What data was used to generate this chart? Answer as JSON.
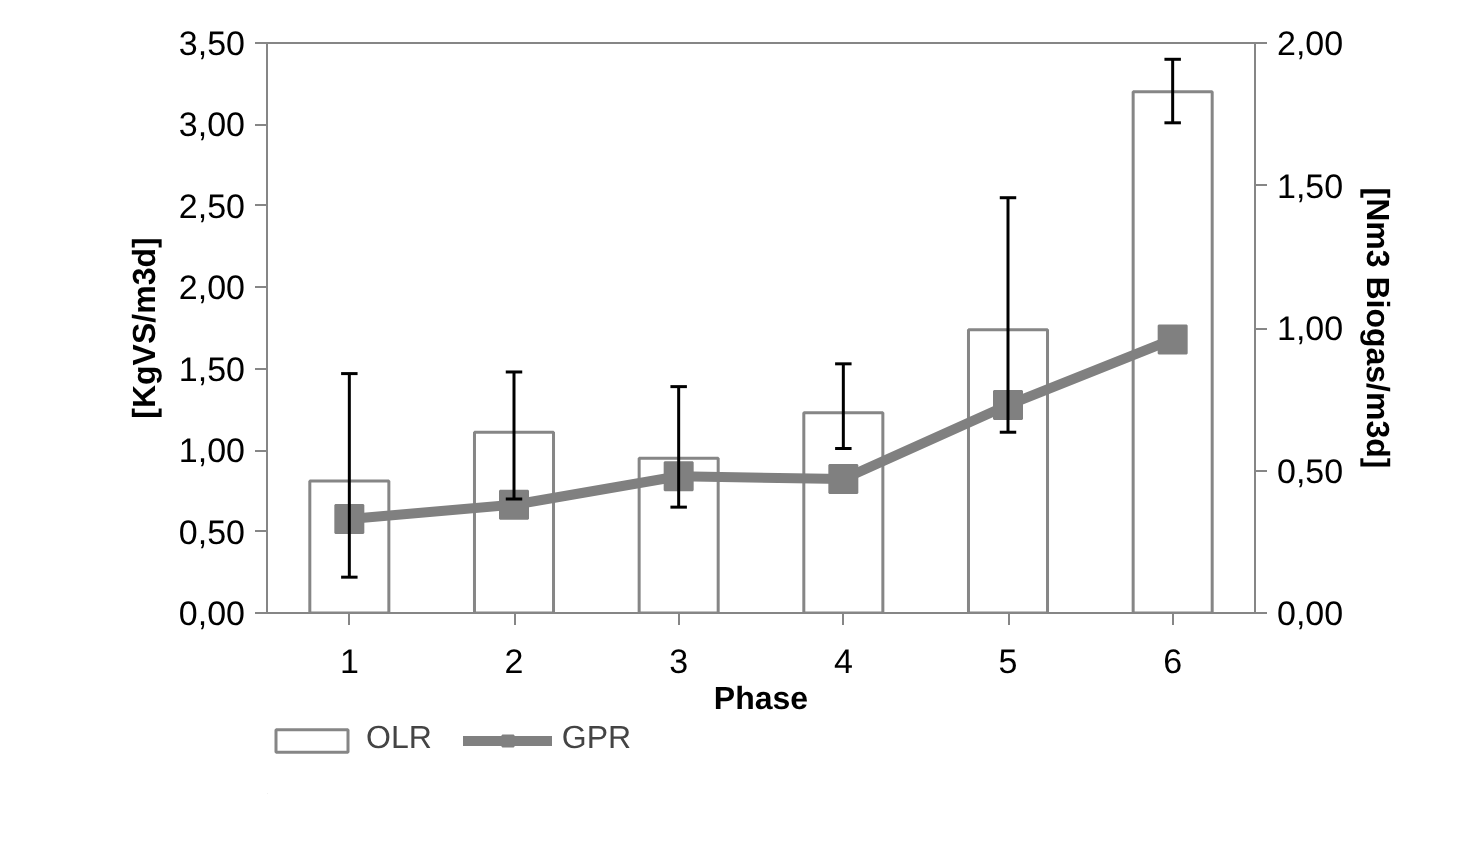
{
  "chart_data": {
    "type": "bar",
    "xlabel": "Phase",
    "ylabel": "[KgVS/m3d]",
    "y2label": "[Nm3 Biogas/m3d]",
    "categories": [
      "1",
      "2",
      "3",
      "4",
      "5",
      "6"
    ],
    "series": [
      {
        "name": "OLR",
        "type": "bar",
        "color": "#ffffff",
        "values": [
          0.81,
          1.11,
          0.95,
          1.23,
          1.74,
          3.2
        ],
        "errors": [
          [
            0.22,
            1.47
          ],
          [
            0.7,
            1.48
          ],
          [
            0.65,
            1.39
          ],
          [
            1.01,
            1.53
          ],
          [
            1.11,
            2.55
          ],
          [
            3.01,
            3.4
          ]
        ]
      },
      {
        "name": "GPR",
        "type": "line",
        "axis": "y2",
        "color": "#808080",
        "marker": "square",
        "values": [
          0.33,
          0.38,
          0.48,
          0.47,
          0.73,
          0.96
        ]
      }
    ],
    "ylim": [
      0,
      3.5
    ],
    "yticks": [
      {
        "value": 0,
        "label": "0,00"
      },
      {
        "value": 0.5,
        "label": "0,50"
      },
      {
        "value": 1,
        "label": "1,00"
      },
      {
        "value": 1.5,
        "label": "1,50"
      },
      {
        "value": 2,
        "label": "2,00"
      },
      {
        "value": 2.5,
        "label": "2,50"
      },
      {
        "value": 3,
        "label": "3,00"
      },
      {
        "value": 3.5,
        "label": "3,50"
      }
    ],
    "y2lim": [
      0,
      2
    ],
    "y2ticks": [
      {
        "value": 0,
        "label": "0,00"
      },
      {
        "value": 0.5,
        "label": "0,50"
      },
      {
        "value": 1,
        "label": "1,00"
      },
      {
        "value": 1.5,
        "label": "1,50"
      },
      {
        "value": 2,
        "label": "2,00"
      }
    ],
    "grid": false,
    "legend": "bottom left"
  }
}
